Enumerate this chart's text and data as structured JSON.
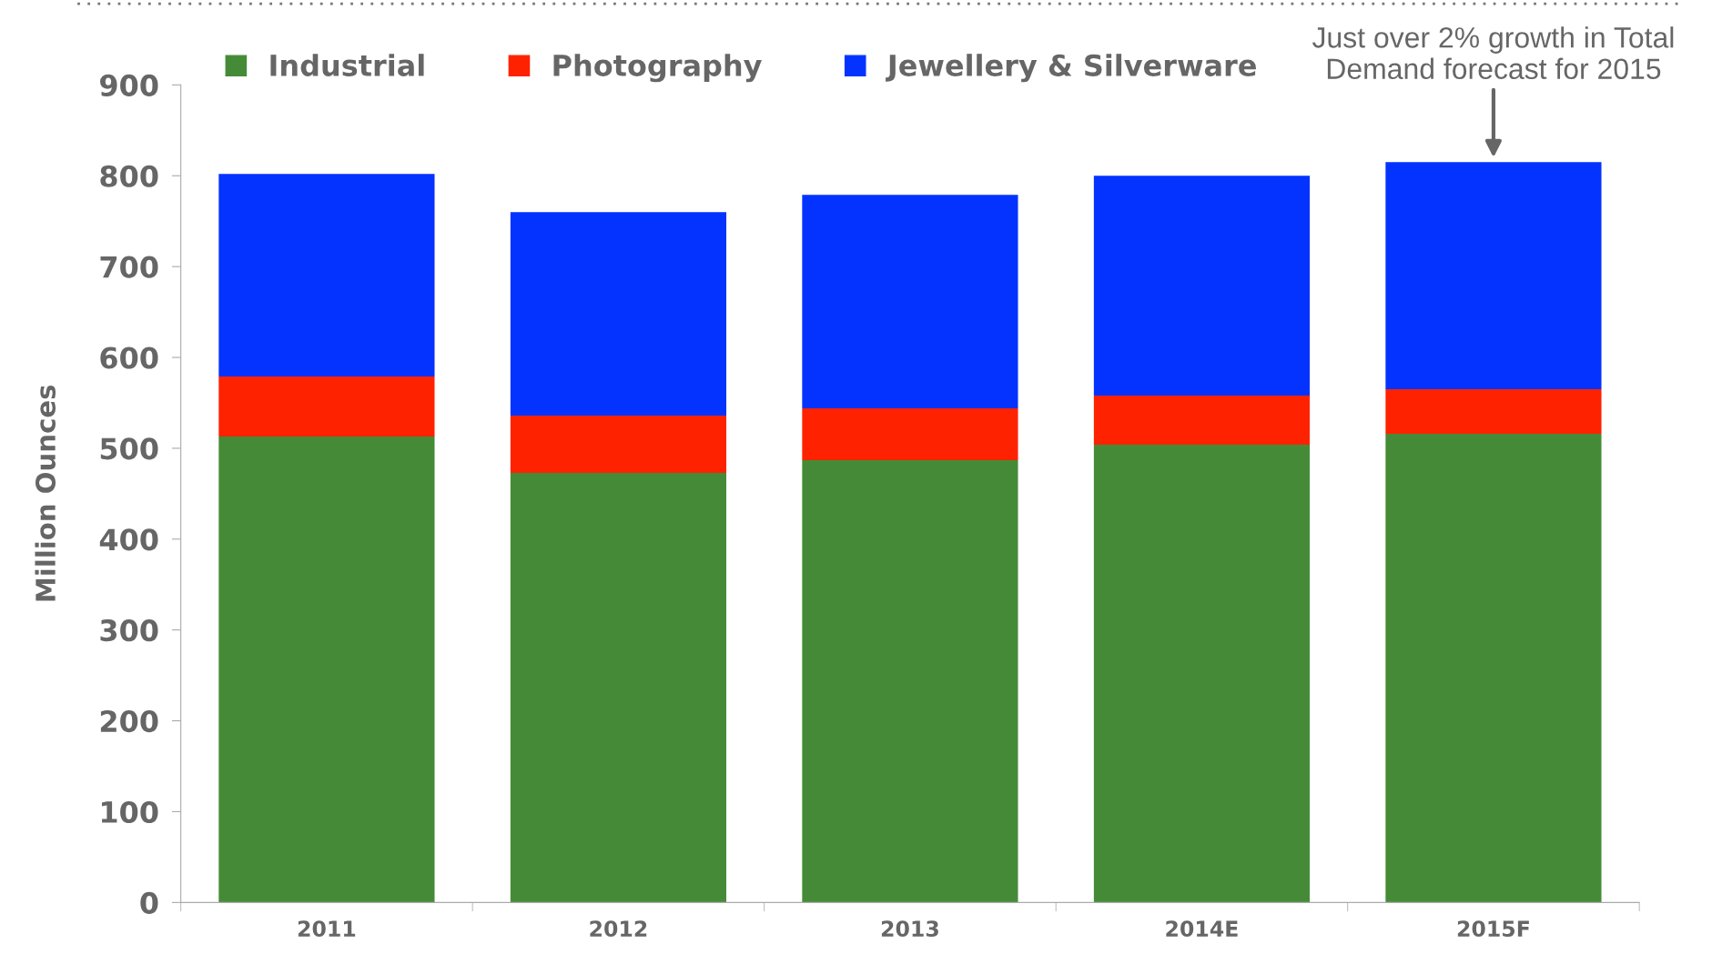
{
  "chart_data": {
    "type": "bar",
    "stacked": true,
    "ylabel": "Million Ounces",
    "categories": [
      "2011",
      "2012",
      "2013",
      "2014E",
      "2015F"
    ],
    "series": [
      {
        "name": "Industrial",
        "color": "#458b37",
        "values": [
          513,
          473,
          487,
          504,
          516
        ]
      },
      {
        "name": "Photography",
        "color": "#ff2200",
        "values": [
          66,
          63,
          57,
          54,
          49
        ]
      },
      {
        "name": "Jewellery & Silverware",
        "color": "#0433ff",
        "values": [
          223,
          224,
          235,
          242,
          250
        ]
      }
    ],
    "ylim": [
      0,
      900
    ],
    "yticks": [
      0,
      100,
      200,
      300,
      400,
      500,
      600,
      700,
      800,
      900
    ],
    "grid": false,
    "legend": "top left",
    "annotations": [
      {
        "text": "Just over 2% growth in Total\nDemand forecast for 2015",
        "x": "2015F",
        "y": 815
      }
    ]
  }
}
